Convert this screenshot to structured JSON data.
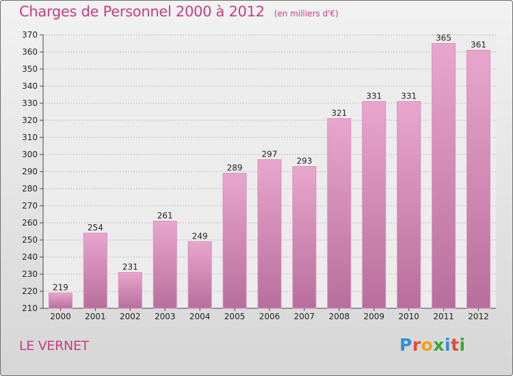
{
  "header": {
    "title": "Charges de Personnel 2000 à 2012",
    "unit": "(en milliers d'€)"
  },
  "commune": "LE VERNET",
  "logo": {
    "text": "Proxiti",
    "letters": [
      {
        "ch": "P",
        "color": "#2f8fd8"
      },
      {
        "ch": "r",
        "color": "#e84a32"
      },
      {
        "ch": "o",
        "color": "#f0a020"
      },
      {
        "ch": "x",
        "color": "#3aa63a"
      },
      {
        "ch": "i",
        "color": "#2f8fd8"
      },
      {
        "ch": "t",
        "color": "#e84a32"
      },
      {
        "ch": "i",
        "color": "#3aa63a"
      }
    ]
  },
  "colors": {
    "accent": "#c63d82",
    "bar_top": "#e8a6cd",
    "bar_bottom": "#b86e9c",
    "grid": "#bbbbbb"
  },
  "chart_data": {
    "type": "bar",
    "title": "Charges de Personnel 2000 à 2012",
    "ylabel": "(en milliers d'€)",
    "xlabel": "",
    "categories": [
      "2000",
      "2001",
      "2002",
      "2003",
      "2004",
      "2005",
      "2006",
      "2007",
      "2008",
      "2009",
      "2010",
      "2011",
      "2012"
    ],
    "values": [
      219,
      254,
      231,
      261,
      249,
      289,
      297,
      293,
      321,
      331,
      331,
      365,
      361
    ],
    "ylim": [
      210,
      370
    ],
    "ytick_step": 10,
    "grid": true
  }
}
